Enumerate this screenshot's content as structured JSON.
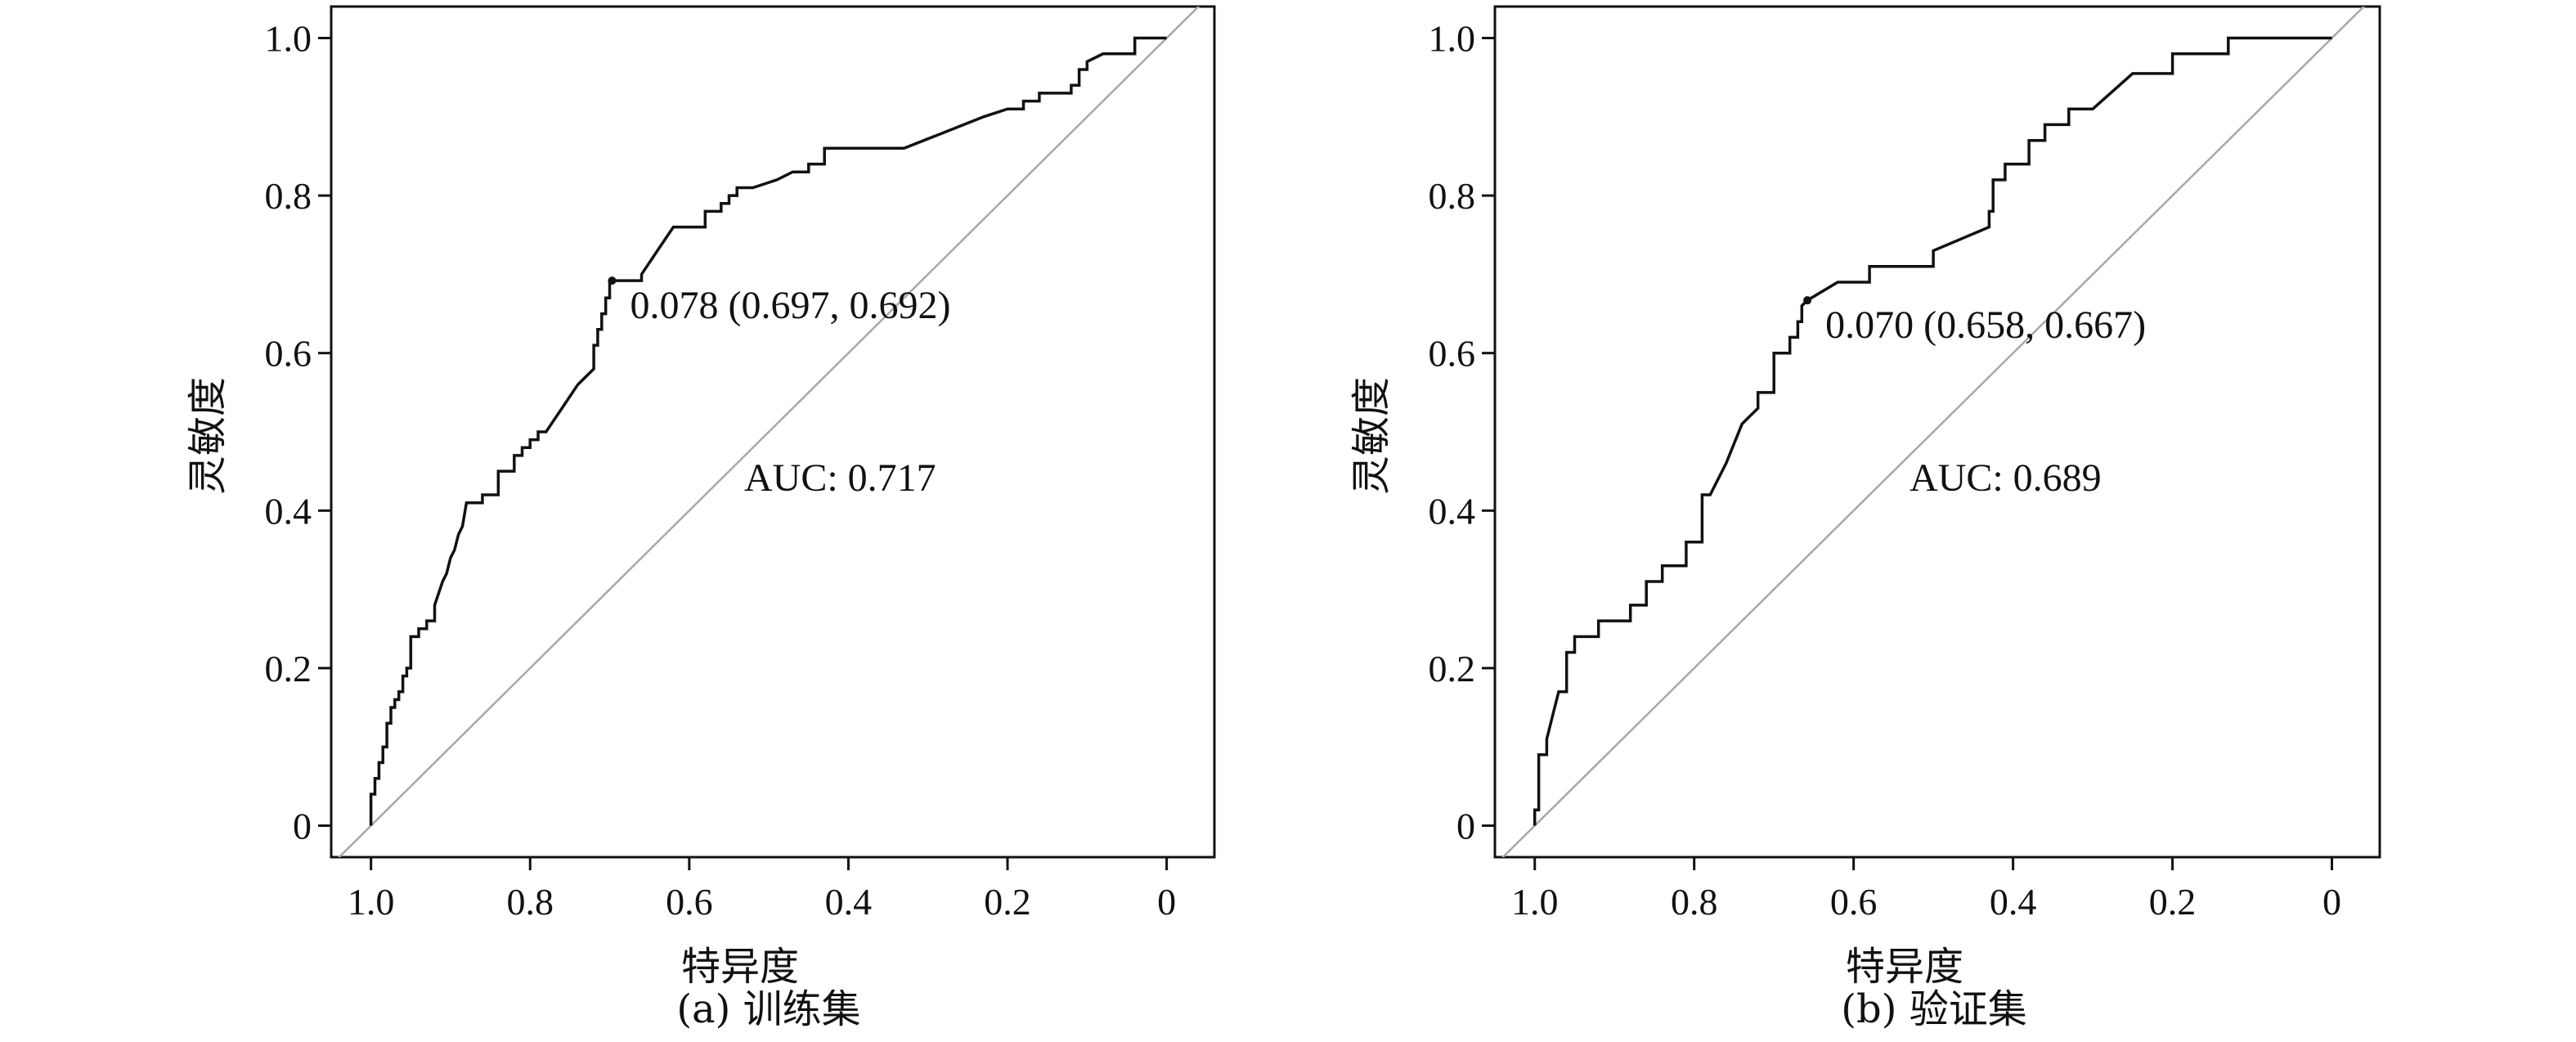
{
  "chart_data": [
    {
      "type": "line",
      "caption": "(a) 训练集",
      "xlabel": "特异度",
      "ylabel": "灵敏度",
      "x_reversed": true,
      "xlim": [
        1.05,
        -0.06
      ],
      "ylim": [
        -0.04,
        1.04
      ],
      "x_ticks": [
        "1.0",
        "0.8",
        "0.6",
        "0.4",
        "0.2",
        "0"
      ],
      "x_tick_values": [
        1.0,
        0.8,
        0.6,
        0.4,
        0.2,
        0.0
      ],
      "y_ticks": [
        "0",
        "0.2",
        "0.4",
        "0.6",
        "0.8",
        "1.0"
      ],
      "y_tick_values": [
        0.0,
        0.2,
        0.4,
        0.6,
        0.8,
        1.0
      ],
      "auc_label": "AUC: 0.717",
      "cutoff_label": "0.078 (0.697, 0.692)",
      "cutoff_point": [
        0.697,
        0.692
      ],
      "series": [
        {
          "specificity": [
            1.0,
            1.0,
            0.995,
            0.995,
            0.99,
            0.99,
            0.985,
            0.985,
            0.98,
            0.98,
            0.975,
            0.975,
            0.97,
            0.97,
            0.965,
            0.965,
            0.96,
            0.96,
            0.955,
            0.955,
            0.95,
            0.95,
            0.94,
            0.94,
            0.93,
            0.93,
            0.92,
            0.92,
            0.91,
            0.905,
            0.9,
            0.895,
            0.89,
            0.885,
            0.88,
            0.88,
            0.86,
            0.86,
            0.84,
            0.84,
            0.82,
            0.82,
            0.81,
            0.81,
            0.8,
            0.8,
            0.79,
            0.79,
            0.78,
            0.78,
            0.76,
            0.74,
            0.72,
            0.72,
            0.715,
            0.715,
            0.71,
            0.71,
            0.705,
            0.705,
            0.7,
            0.7,
            0.697,
            0.66,
            0.66,
            0.64,
            0.62,
            0.62,
            0.58,
            0.58,
            0.56,
            0.56,
            0.55,
            0.55,
            0.54,
            0.54,
            0.52,
            0.52,
            0.49,
            0.47,
            0.45,
            0.45,
            0.43,
            0.43,
            0.33,
            0.23,
            0.2,
            0.2,
            0.18,
            0.18,
            0.16,
            0.16,
            0.12,
            0.12,
            0.11,
            0.11,
            0.1,
            0.1,
            0.08,
            0.04,
            0.04,
            0.02,
            0.0
          ],
          "sensitivity": [
            0.0,
            0.04,
            0.04,
            0.06,
            0.06,
            0.08,
            0.08,
            0.1,
            0.1,
            0.13,
            0.13,
            0.15,
            0.15,
            0.16,
            0.16,
            0.17,
            0.17,
            0.19,
            0.19,
            0.2,
            0.2,
            0.24,
            0.24,
            0.25,
            0.25,
            0.26,
            0.26,
            0.28,
            0.31,
            0.32,
            0.34,
            0.35,
            0.37,
            0.38,
            0.41,
            0.41,
            0.41,
            0.42,
            0.42,
            0.45,
            0.45,
            0.47,
            0.47,
            0.48,
            0.48,
            0.49,
            0.49,
            0.5,
            0.5,
            0.5,
            0.53,
            0.56,
            0.58,
            0.61,
            0.61,
            0.63,
            0.63,
            0.65,
            0.65,
            0.67,
            0.67,
            0.692,
            0.692,
            0.692,
            0.7,
            0.73,
            0.76,
            0.76,
            0.76,
            0.78,
            0.78,
            0.79,
            0.79,
            0.8,
            0.8,
            0.81,
            0.81,
            0.81,
            0.82,
            0.83,
            0.83,
            0.84,
            0.84,
            0.86,
            0.86,
            0.9,
            0.91,
            0.91,
            0.91,
            0.92,
            0.92,
            0.93,
            0.93,
            0.94,
            0.94,
            0.96,
            0.96,
            0.97,
            0.98,
            0.98,
            1.0,
            1.0,
            1.0
          ]
        }
      ]
    },
    {
      "type": "line",
      "caption": "(b) 验证集",
      "xlabel": "特异度",
      "ylabel": "灵敏度",
      "x_reversed": true,
      "xlim": [
        1.05,
        -0.06
      ],
      "ylim": [
        -0.04,
        1.04
      ],
      "x_ticks": [
        "1.0",
        "0.8",
        "0.6",
        "0.4",
        "0.2",
        "0"
      ],
      "x_tick_values": [
        1.0,
        0.8,
        0.6,
        0.4,
        0.2,
        0.0
      ],
      "y_ticks": [
        "0",
        "0.2",
        "0.4",
        "0.6",
        "0.8",
        "1.0"
      ],
      "y_tick_values": [
        0.0,
        0.2,
        0.4,
        0.6,
        0.8,
        1.0
      ],
      "auc_label": "AUC: 0.689",
      "cutoff_label": "0.070 (0.658, 0.667)",
      "cutoff_point": [
        0.658,
        0.667
      ],
      "series": [
        {
          "specificity": [
            1.0,
            1.0,
            0.995,
            0.995,
            0.985,
            0.985,
            0.975,
            0.97,
            0.96,
            0.96,
            0.95,
            0.95,
            0.92,
            0.92,
            0.88,
            0.88,
            0.86,
            0.86,
            0.84,
            0.84,
            0.81,
            0.81,
            0.79,
            0.79,
            0.78,
            0.76,
            0.74,
            0.73,
            0.72,
            0.72,
            0.7,
            0.7,
            0.68,
            0.68,
            0.67,
            0.67,
            0.665,
            0.665,
            0.658,
            0.62,
            0.62,
            0.58,
            0.58,
            0.5,
            0.5,
            0.43,
            0.43,
            0.425,
            0.425,
            0.41,
            0.41,
            0.38,
            0.38,
            0.36,
            0.36,
            0.33,
            0.33,
            0.3,
            0.25,
            0.2,
            0.2,
            0.13,
            0.13,
            0.0
          ],
          "sensitivity": [
            0.0,
            0.02,
            0.02,
            0.09,
            0.09,
            0.11,
            0.15,
            0.17,
            0.17,
            0.22,
            0.22,
            0.24,
            0.24,
            0.26,
            0.26,
            0.28,
            0.28,
            0.31,
            0.31,
            0.33,
            0.33,
            0.36,
            0.36,
            0.42,
            0.42,
            0.46,
            0.51,
            0.52,
            0.53,
            0.55,
            0.55,
            0.6,
            0.6,
            0.62,
            0.62,
            0.64,
            0.64,
            0.66,
            0.667,
            0.69,
            0.69,
            0.69,
            0.71,
            0.71,
            0.73,
            0.76,
            0.78,
            0.78,
            0.82,
            0.82,
            0.84,
            0.84,
            0.87,
            0.87,
            0.89,
            0.89,
            0.91,
            0.91,
            0.955,
            0.955,
            0.98,
            0.98,
            1.0,
            1.0
          ]
        }
      ]
    }
  ]
}
